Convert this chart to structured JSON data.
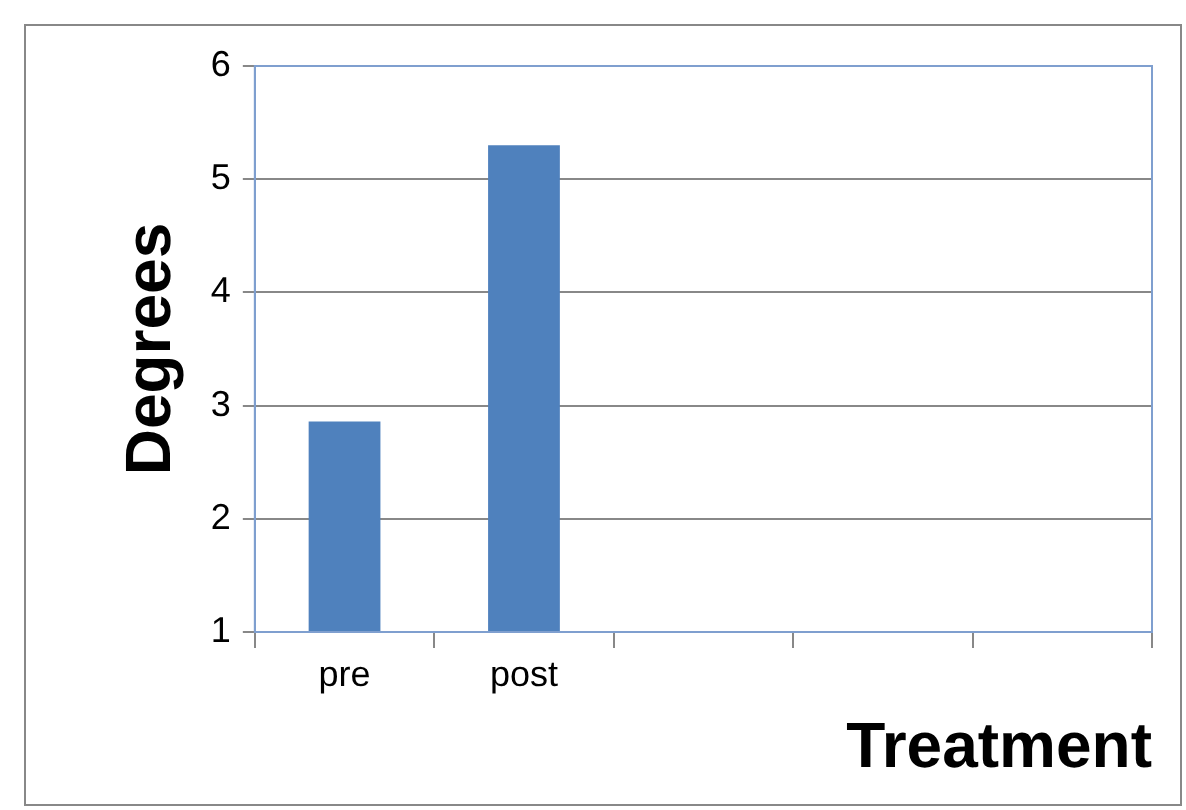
{
  "chart_data": {
    "type": "bar",
    "xlabel": "Treatment",
    "ylabel": "Degrees",
    "categories": [
      "pre",
      "post",
      null,
      null,
      null
    ],
    "values": [
      2.86,
      5.3,
      null,
      null,
      null
    ],
    "color": "#4f81bd",
    "ylim": [
      1,
      6
    ],
    "yticks": [
      1,
      2,
      3,
      4,
      5,
      6
    ],
    "grid": "y",
    "legend": false
  }
}
